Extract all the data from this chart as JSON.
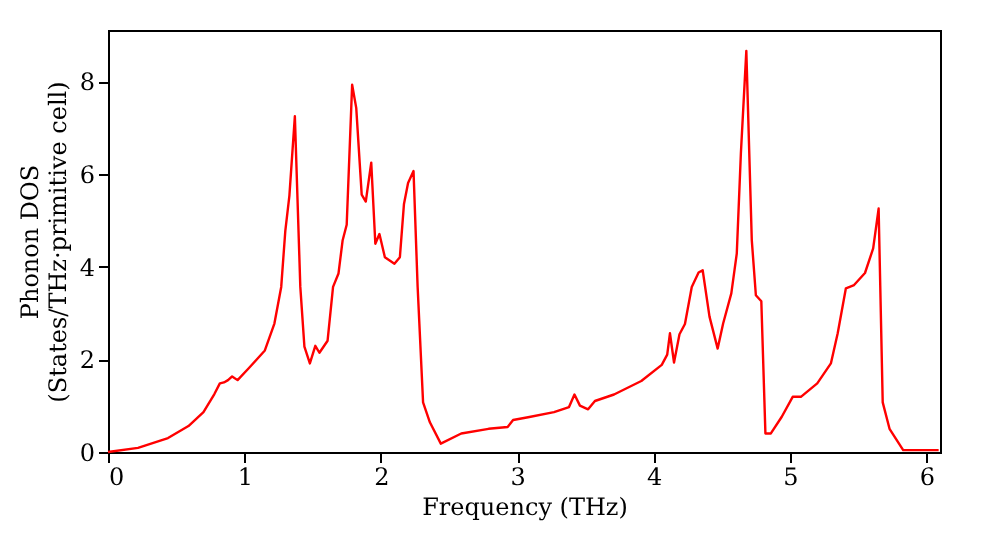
{
  "chart_data": {
    "type": "line",
    "xlabel": "Frequency (THz)",
    "ylabel": "Phonon DOS\n(States/THz·primitive cell)",
    "xlim": [
      0,
      6.1
    ],
    "ylim": [
      0,
      9.1
    ],
    "xticks": [
      0,
      1,
      2,
      3,
      4,
      5,
      6
    ],
    "yticks": [
      0,
      2,
      4,
      6,
      8
    ],
    "grid": false,
    "legend": false,
    "line_style": "solid",
    "marker": "none",
    "series": [
      {
        "color": "#ff0000",
        "x": [
          0,
          0.22,
          0.44,
          0.59,
          0.7,
          0.78,
          0.82,
          0.85,
          0.88,
          0.91,
          0.95,
          1.03,
          1.15,
          1.22,
          1.27,
          1.3,
          1.33,
          1.37,
          1.41,
          1.44,
          1.48,
          1.52,
          1.55,
          1.61,
          1.65,
          1.69,
          1.72,
          1.75,
          1.79,
          1.82,
          1.86,
          1.89,
          1.93,
          1.96,
          1.99,
          2.03,
          2.1,
          2.14,
          2.17,
          2.2,
          2.24,
          2.27,
          2.31,
          2.36,
          2.44,
          2.59,
          2.79,
          2.93,
          2.97,
          3.08,
          3.27,
          3.38,
          3.42,
          3.46,
          3.52,
          3.57,
          3.71,
          3.91,
          4.06,
          4.1,
          4.12,
          4.15,
          4.19,
          4.23,
          4.28,
          4.33,
          4.36,
          4.41,
          4.47,
          4.51,
          4.57,
          4.61,
          4.64,
          4.68,
          4.72,
          4.75,
          4.79,
          4.82,
          4.86,
          4.94,
          5.02,
          5.08,
          5.2,
          5.3,
          5.35,
          5.41,
          5.47,
          5.55,
          5.61,
          5.65,
          5.68,
          5.73,
          5.83,
          6.09
        ],
        "values": [
          0,
          0.09,
          0.3,
          0.56,
          0.86,
          1.25,
          1.48,
          1.5,
          1.55,
          1.63,
          1.55,
          1.8,
          2.19,
          2.77,
          3.56,
          4.77,
          5.53,
          7.24,
          3.56,
          2.27,
          1.91,
          2.29,
          2.14,
          2.4,
          3.56,
          3.85,
          4.56,
          4.9,
          7.92,
          7.42,
          5.55,
          5.4,
          6.24,
          4.49,
          4.7,
          4.2,
          4.06,
          4.2,
          5.35,
          5.8,
          6.06,
          3.57,
          1.07,
          0.64,
          0.18,
          0.4,
          0.5,
          0.54,
          0.69,
          0.75,
          0.86,
          0.97,
          1.24,
          1.0,
          0.92,
          1.1,
          1.24,
          1.53,
          1.88,
          2.1,
          2.56,
          1.93,
          2.54,
          2.76,
          3.56,
          3.87,
          3.92,
          2.92,
          2.23,
          2.77,
          3.42,
          4.28,
          6.43,
          8.65,
          4.57,
          3.38,
          3.25,
          0.4,
          0.4,
          0.76,
          1.19,
          1.19,
          1.48,
          1.91,
          2.56,
          3.53,
          3.6,
          3.86,
          4.39,
          5.25,
          1.07,
          0.5,
          0.04,
          0.04
        ]
      }
    ]
  }
}
